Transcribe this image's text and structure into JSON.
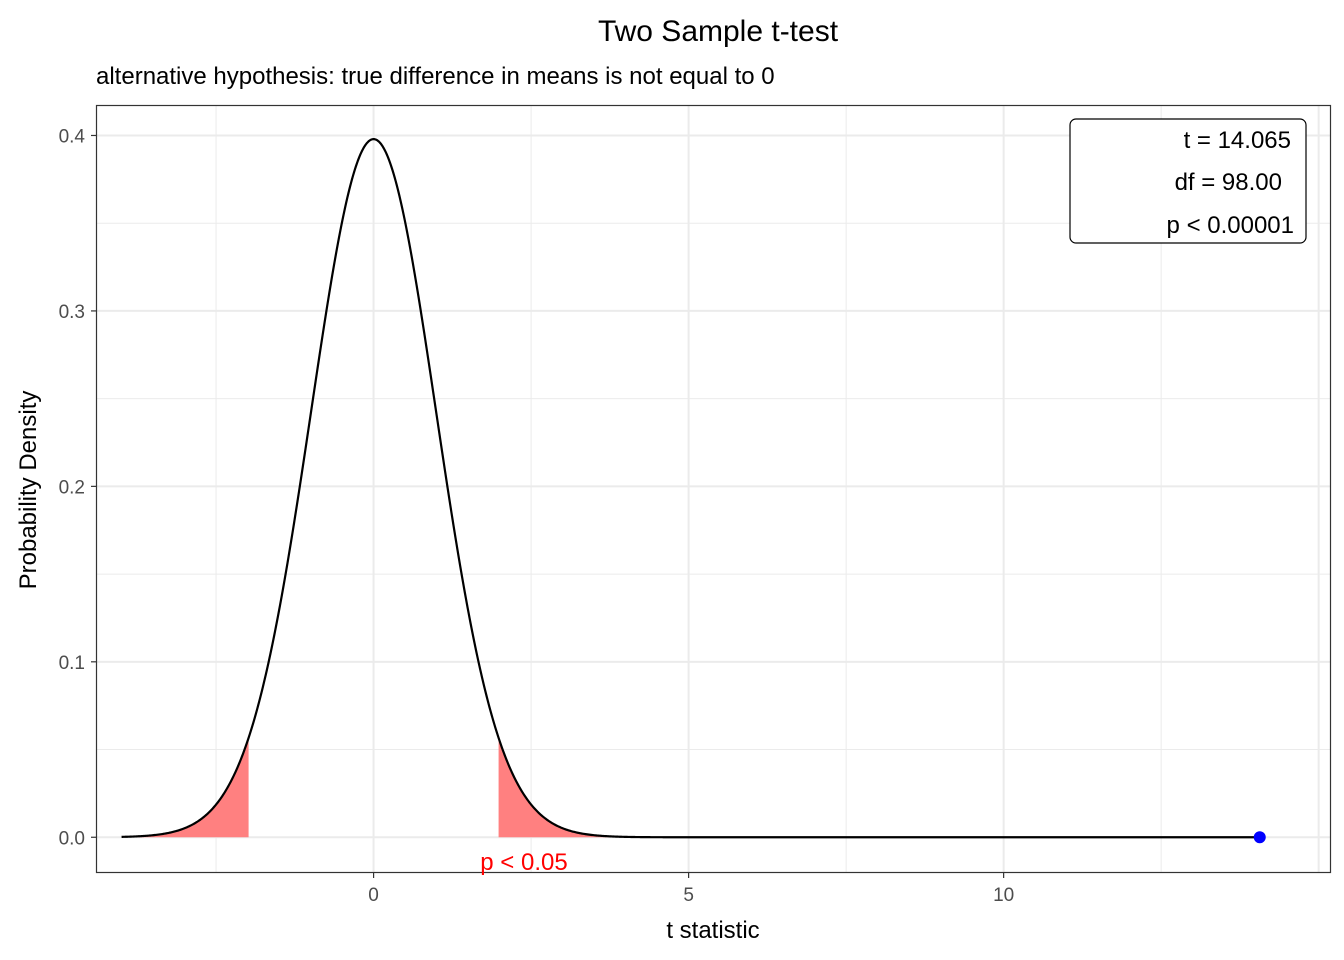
{
  "chart_data": {
    "type": "line",
    "title": "Two Sample t-test",
    "subtitle": "alternative hypothesis: true difference in means is not equal to 0",
    "xlabel": "t statistic",
    "ylabel": "Probability Density",
    "xlim": [
      -4.39,
      15.18
    ],
    "ylim": [
      -0.0198,
      0.4168
    ],
    "x_ticks": [
      0,
      5,
      10
    ],
    "x_tick_labels": [
      "0",
      "5",
      "10"
    ],
    "y_ticks": [
      0.0,
      0.1,
      0.2,
      0.3,
      0.4
    ],
    "y_tick_labels": [
      "0.0",
      "0.1",
      "0.2",
      "0.3",
      "0.4"
    ],
    "grid": true,
    "distribution": {
      "name": "t",
      "df": 98.0,
      "x_start": -4.0,
      "x_end": 14.065
    },
    "density_points": [
      {
        "x": -4.0,
        "y": 0.0001
      },
      {
        "x": -3.0,
        "y": 0.0048
      },
      {
        "x": -2.5,
        "y": 0.0179
      },
      {
        "x": -1.984,
        "y": 0.0553
      },
      {
        "x": -1.5,
        "y": 0.1287
      },
      {
        "x": -1.0,
        "y": 0.2413
      },
      {
        "x": -0.5,
        "y": 0.3513
      },
      {
        "x": 0.0,
        "y": 0.3979
      },
      {
        "x": 0.5,
        "y": 0.3513
      },
      {
        "x": 1.0,
        "y": 0.2413
      },
      {
        "x": 1.5,
        "y": 0.1287
      },
      {
        "x": 1.984,
        "y": 0.0553
      },
      {
        "x": 2.5,
        "y": 0.0179
      },
      {
        "x": 3.0,
        "y": 0.0048
      },
      {
        "x": 4.0,
        "y": 0.0001
      },
      {
        "x": 14.065,
        "y": 0.0
      }
    ],
    "rejection_regions": [
      {
        "from": -4.0,
        "to": -1.984
      },
      {
        "from": 1.984,
        "to": 4.0
      }
    ],
    "critical_value": 1.984,
    "region_color": "#ff8080",
    "region_label": "p < 0.05",
    "region_label_color": "#ff0000",
    "observed_point": {
      "x": 14.065,
      "y": 0.0,
      "color": "#0000ff"
    },
    "stats_box": {
      "lines": [
        "t = 14.065",
        "df = 98.00",
        "p < 0.00001"
      ],
      "position": "top-right"
    },
    "line_color": "#000000"
  }
}
